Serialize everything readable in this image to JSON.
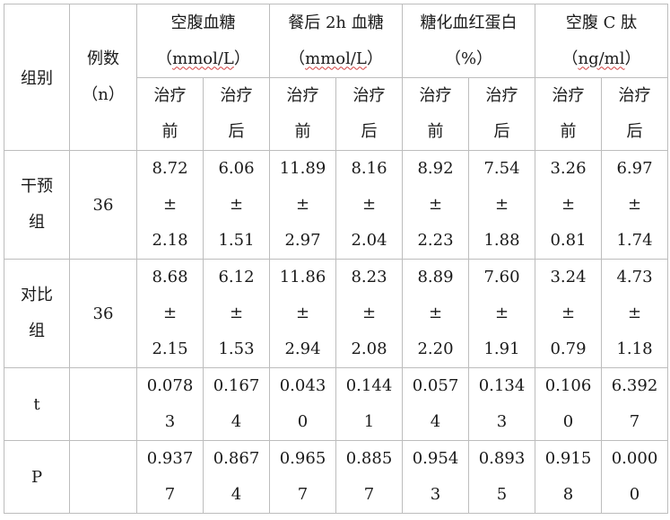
{
  "header": {
    "group_label": "组别",
    "count_label": "例数",
    "count_unit": "（n）",
    "metrics": [
      {
        "name": "空腹血糖",
        "unit_pre": "（",
        "unit": "mmol/L",
        "unit_post": "）",
        "unit_wavy": true
      },
      {
        "name": "餐后 2h 血糖",
        "unit_pre": "（",
        "unit": "mmol/L",
        "unit_post": "）",
        "unit_wavy": true
      },
      {
        "name": "糖化血红蛋白",
        "unit_pre": "（",
        "unit": "%",
        "unit_post": "）",
        "unit_wavy": false
      },
      {
        "name": "空腹 C 肽",
        "unit_pre": "（",
        "unit": "ng/ml",
        "unit_post": "）",
        "unit_wavy": true
      }
    ],
    "phase_before": [
      "治疗",
      "前"
    ],
    "phase_after": [
      "治疗",
      "后"
    ]
  },
  "rows": [
    {
      "label": [
        "干预",
        "组"
      ],
      "n": "36",
      "cells": [
        [
          "8.72",
          "±",
          "2.18"
        ],
        [
          "6.06",
          "±",
          "1.51"
        ],
        [
          "11.89",
          "±",
          "2.97"
        ],
        [
          "8.16",
          "±",
          "2.04"
        ],
        [
          "8.92",
          "±",
          "2.23"
        ],
        [
          "7.54",
          "±",
          "1.88"
        ],
        [
          "3.26",
          "±",
          "0.81"
        ],
        [
          "6.97",
          "±",
          "1.74"
        ]
      ]
    },
    {
      "label": [
        "对比",
        "组"
      ],
      "n": "36",
      "cells": [
        [
          "8.68",
          "±",
          "2.15"
        ],
        [
          "6.12",
          "±",
          "1.53"
        ],
        [
          "11.86",
          "±",
          "2.94"
        ],
        [
          "8.23",
          "±",
          "2.08"
        ],
        [
          "8.89",
          "±",
          "2.20"
        ],
        [
          "7.60",
          "±",
          "1.91"
        ],
        [
          "3.24",
          "±",
          "0.79"
        ],
        [
          "4.73",
          "±",
          "1.18"
        ]
      ]
    }
  ],
  "stats": [
    {
      "label": "t",
      "cells": [
        [
          "0.078",
          "3"
        ],
        [
          "0.167",
          "4"
        ],
        [
          "0.043",
          "0"
        ],
        [
          "0.144",
          "1"
        ],
        [
          "0.057",
          "4"
        ],
        [
          "0.134",
          "3"
        ],
        [
          "0.106",
          "0"
        ],
        [
          "6.392",
          "7"
        ]
      ]
    },
    {
      "label": "P",
      "cells": [
        [
          "0.937",
          "7"
        ],
        [
          "0.867",
          "4"
        ],
        [
          "0.965",
          "7"
        ],
        [
          "0.885",
          "7"
        ],
        [
          "0.954",
          "3"
        ],
        [
          "0.893",
          "5"
        ],
        [
          "0.915",
          "8"
        ],
        [
          "0.000",
          "0"
        ]
      ]
    }
  ]
}
